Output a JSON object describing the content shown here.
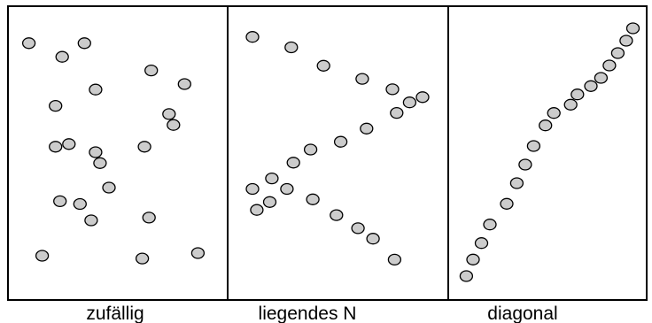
{
  "panels": [
    {
      "id": "random",
      "label": "zufällig",
      "points": [
        [
          0.5,
          9
        ],
        [
          3,
          9
        ],
        [
          2,
          8.5
        ],
        [
          3.5,
          7.3
        ],
        [
          6,
          8
        ],
        [
          7.5,
          7.5
        ],
        [
          1.7,
          6.7
        ],
        [
          6.8,
          6.4
        ],
        [
          2.3,
          5.3
        ],
        [
          3.5,
          5
        ],
        [
          5.7,
          5.2
        ],
        [
          3.7,
          4.6
        ],
        [
          4.1,
          3.7
        ],
        [
          7,
          6
        ],
        [
          1.9,
          3.2
        ],
        [
          2.8,
          3.1
        ],
        [
          5.6,
          1.1
        ],
        [
          8.1,
          1.3
        ],
        [
          3.3,
          2.5
        ],
        [
          1.1,
          1.2
        ],
        [
          1.7,
          5.2
        ],
        [
          5.9,
          2.6
        ]
      ]
    },
    {
      "id": "lying-n",
      "label": "liegendes N",
      "points": [
        [
          0.7,
          9.6
        ],
        [
          2.5,
          9.2
        ],
        [
          4.0,
          8.5
        ],
        [
          5.8,
          8.0
        ],
        [
          7.2,
          7.6
        ],
        [
          8.6,
          7.3
        ],
        [
          0.7,
          3.8
        ],
        [
          1.6,
          4.2
        ],
        [
          2.6,
          4.8
        ],
        [
          3.4,
          5.3
        ],
        [
          4.8,
          5.6
        ],
        [
          6.0,
          6.1
        ],
        [
          7.4,
          6.7
        ],
        [
          8.0,
          7.1
        ],
        [
          2.3,
          3.8
        ],
        [
          3.5,
          3.4
        ],
        [
          4.6,
          2.8
        ],
        [
          5.6,
          2.3
        ],
        [
          6.3,
          1.9
        ],
        [
          1.5,
          3.3
        ],
        [
          0.9,
          3.0
        ],
        [
          7.3,
          1.1
        ]
      ]
    },
    {
      "id": "diagonal",
      "label": "diagonal",
      "points": [
        [
          0.6,
          0.6
        ],
        [
          1.0,
          1.4
        ],
        [
          1.5,
          2.2
        ],
        [
          2.0,
          3.1
        ],
        [
          3.0,
          4.1
        ],
        [
          3.6,
          5.1
        ],
        [
          4.1,
          6.0
        ],
        [
          4.6,
          6.9
        ],
        [
          5.3,
          7.9
        ],
        [
          5.8,
          8.5
        ],
        [
          6.8,
          8.9
        ],
        [
          7.2,
          9.4
        ],
        [
          8.0,
          9.8
        ],
        [
          8.6,
          10.2
        ],
        [
          9.1,
          10.8
        ],
        [
          9.6,
          11.4
        ],
        [
          10.1,
          12.0
        ],
        [
          10.5,
          12.6
        ]
      ]
    }
  ]
}
